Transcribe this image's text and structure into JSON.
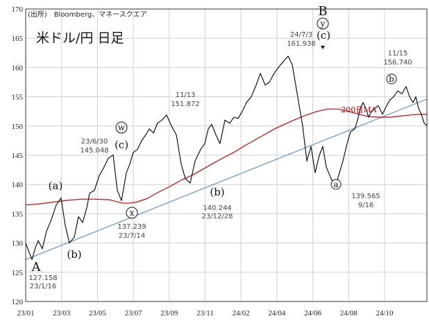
{
  "chart_data": {
    "type": "line",
    "title": "米ドル/円 日足",
    "source": "(出所)　Bloomberg、マネースクエア",
    "yticks": [
      120,
      125,
      130,
      135,
      140,
      145,
      150,
      155,
      160,
      165,
      170
    ],
    "ylim": [
      120,
      170
    ],
    "xticks": [
      "23/01",
      "23/03",
      "23/05",
      "23/07",
      "23/09",
      "23/11",
      "24/02",
      "24/04",
      "24/06",
      "24/08",
      "24/10"
    ],
    "series": [
      {
        "name": "USD/JPY",
        "color": "#000000",
        "x": [
          0,
          9,
          14,
          18,
          24,
          30,
          37,
          44,
          51,
          57,
          63,
          70,
          76,
          82,
          88,
          92,
          99,
          106,
          113,
          119,
          126,
          132,
          138,
          145,
          150,
          155,
          161,
          167,
          173,
          178,
          184,
          190,
          196,
          203,
          210,
          217,
          224,
          230,
          237,
          244,
          252,
          258,
          263,
          268,
          274,
          280,
          287,
          294,
          300,
          306,
          312,
          318,
          325,
          332,
          338,
          345,
          351,
          358,
          364,
          371,
          378,
          384,
          389,
          394,
          399,
          405,
          411,
          417,
          423,
          428,
          433,
          440,
          446,
          452,
          457,
          463,
          468,
          474,
          478,
          482,
          486,
          490,
          494,
          498,
          503,
          508,
          514,
          520,
          525,
          530,
          536,
          542,
          548,
          553,
          558,
          562,
          566,
          570,
          574,
          578
        ],
        "values": [
          130.0,
          127.158,
          129.2,
          130.4,
          129.0,
          132.0,
          134.0,
          136.5,
          137.7,
          133.0,
          130.0,
          131.0,
          134.5,
          133.5,
          136.0,
          138.5,
          139.0,
          141.5,
          143.0,
          144.5,
          145.048,
          139.0,
          137.239,
          142.0,
          143.5,
          145.5,
          146.0,
          147.5,
          148.5,
          149.5,
          148.8,
          150.5,
          151.0,
          151.872,
          150.0,
          148.5,
          143.5,
          141.0,
          140.244,
          144.0,
          146.0,
          147.0,
          149.5,
          150.3,
          148.5,
          147.0,
          151.0,
          150.5,
          151.5,
          151.3,
          152.5,
          154.0,
          155.0,
          157.0,
          159.0,
          157.0,
          157.5,
          159.0,
          160.0,
          161.0,
          161.938,
          160.5,
          157.0,
          153.5,
          150.0,
          144.0,
          146.5,
          142.0,
          145.0,
          146.5,
          143.0,
          141.0,
          139.565,
          142.0,
          144.0,
          147.0,
          149.0,
          149.5,
          151.0,
          153.0,
          154.0,
          153.0,
          151.5,
          152.5,
          153.0,
          153.5,
          152.0,
          153.5,
          154.5,
          155.0,
          156.0,
          155.5,
          156.74,
          155.0,
          154.0,
          155.0,
          153.0,
          152.0,
          150.5,
          150.0
        ]
      },
      {
        "name": "200日MA",
        "color": "#d00000",
        "x": [
          0,
          20,
          40,
          60,
          80,
          100,
          120,
          130,
          140,
          150,
          160,
          175,
          190,
          210,
          225,
          240,
          255,
          270,
          285,
          300,
          315,
          330,
          345,
          360,
          375,
          390,
          405,
          420,
          435,
          450,
          465,
          480,
          495,
          510,
          525,
          540,
          555,
          570,
          578
        ],
        "values": [
          136.5,
          136.7,
          137.0,
          137.3,
          137.5,
          137.5,
          137.4,
          137.1,
          136.8,
          136.8,
          137.0,
          137.6,
          138.6,
          139.8,
          140.8,
          141.6,
          142.6,
          143.6,
          144.6,
          145.5,
          146.6,
          147.6,
          148.6,
          149.6,
          150.4,
          151.2,
          151.9,
          152.5,
          152.9,
          152.9,
          152.5,
          152.0,
          151.6,
          151.5,
          151.5,
          151.7,
          151.9,
          152.0,
          152.0
        ]
      },
      {
        "name": "trendline",
        "color": "#5b8fd0",
        "x": [
          0,
          578
        ],
        "values": [
          127.158,
          154.6
        ]
      }
    ],
    "annotations": [
      {
        "label": "A",
        "sub": [
          "127.158",
          "23/1/16"
        ]
      },
      {
        "label": "(a)"
      },
      {
        "label": "(b)"
      },
      {
        "label": "x",
        "sub": [
          "137.239",
          "23/7/14"
        ]
      },
      {
        "label": "w"
      },
      {
        "label": "(c)",
        "sub": [
          "23/6/30",
          "145.048"
        ]
      },
      {
        "label": "",
        "sub": [
          "11/13",
          "151.872"
        ]
      },
      {
        "label": "(b)",
        "sub": [
          "140.244",
          "23/12/28"
        ]
      },
      {
        "label": "B"
      },
      {
        "label": "y"
      },
      {
        "label": "(c)",
        "sub": [
          "24/7/3",
          "161.938"
        ]
      },
      {
        "label": "a"
      },
      {
        "label": "",
        "sub": [
          "139.565",
          "9/16"
        ]
      },
      {
        "label": "b",
        "sub": [
          "11/15",
          "156.740"
        ]
      },
      {
        "label": "200日MA"
      }
    ]
  }
}
